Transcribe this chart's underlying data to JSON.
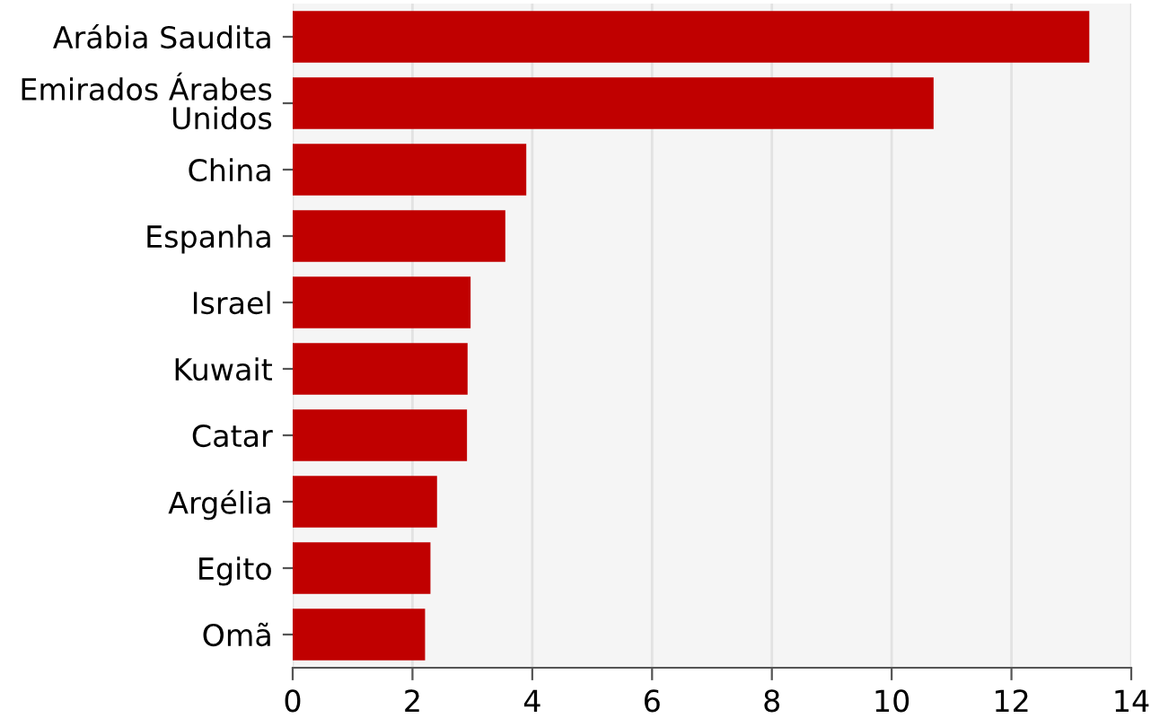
{
  "chart_data": {
    "type": "bar",
    "orientation": "horizontal",
    "categories": [
      "Arábia Saudita",
      "Emirados Árabes\nUnidos",
      "China",
      "Espanha",
      "Israel",
      "Kuwait",
      "Catar",
      "Argélia",
      "Egito",
      "Omã"
    ],
    "values": [
      13.3,
      10.7,
      3.9,
      3.55,
      2.97,
      2.92,
      2.91,
      2.41,
      2.3,
      2.21
    ],
    "color": "#c00000",
    "xlim": [
      0,
      14
    ],
    "xticks": [
      0,
      2,
      4,
      6,
      8,
      10,
      12,
      14
    ],
    "grid": "x",
    "legend": false
  }
}
